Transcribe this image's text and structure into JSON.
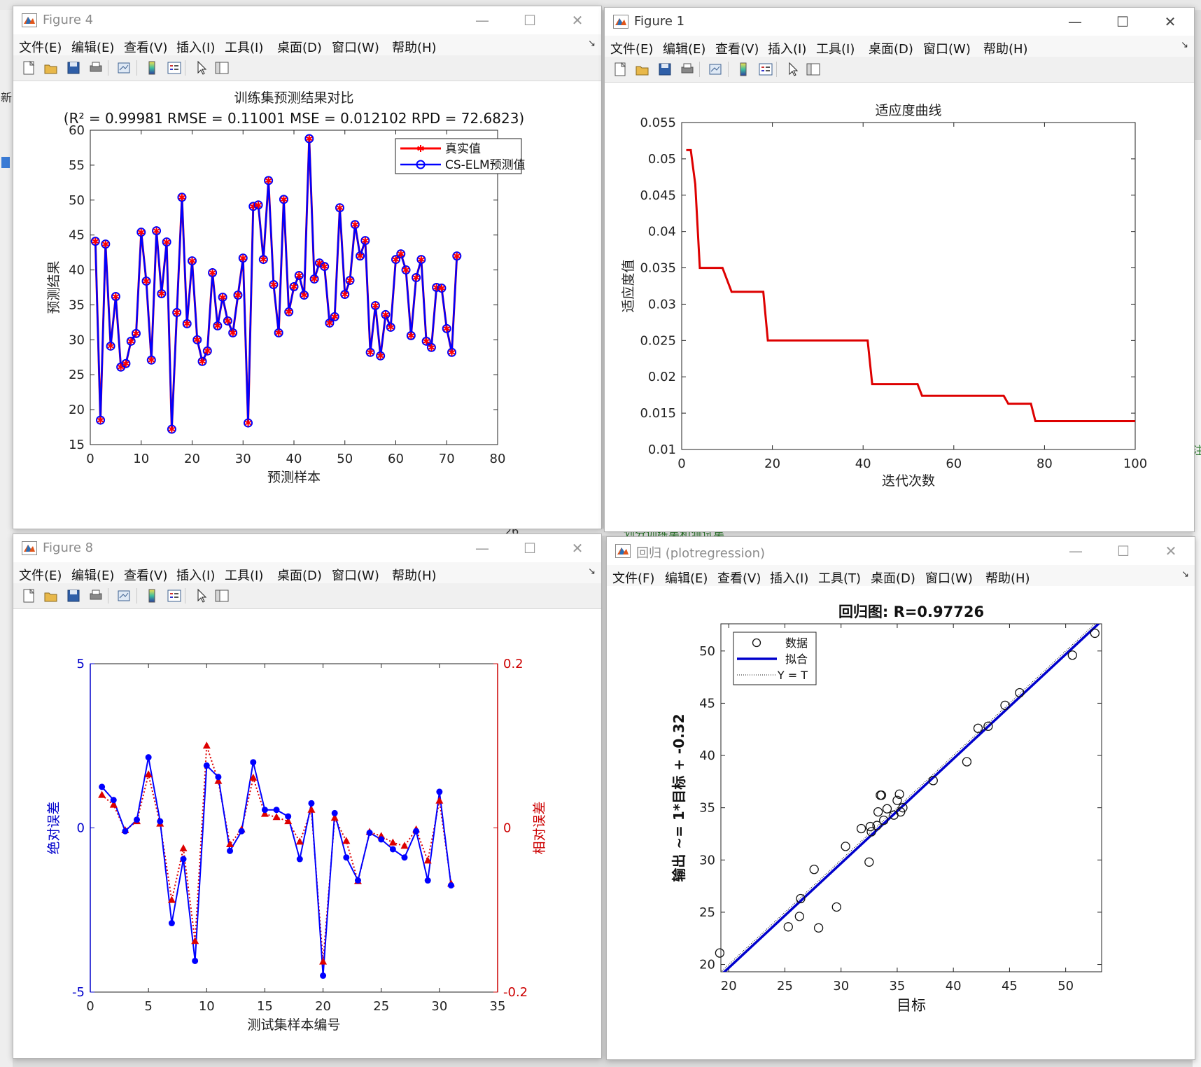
{
  "menus": [
    "文件(F)",
    "编辑(E)",
    "查看(V)",
    "插入(I)",
    "工具(T)",
    "桌面(D)",
    "窗口(W)",
    "帮助(H)"
  ],
  "menus_bracket": [
    "文件(E)",
    "编辑(E)",
    "查看(V)",
    "插入(I)",
    "工具(I)",
    "桌面(D)",
    "窗口(W)",
    "帮助(H)"
  ],
  "background": {
    "snippets": [
      "新",
      "划分训练集和测试集",
      "26",
      "土",
      "注"
    ]
  },
  "windows": {
    "fig4": {
      "title": "Figure 4",
      "chart_data": {
        "type": "line",
        "title": "训练集预测结果对比",
        "subtitle": "(R² = 0.99981 RMSE = 0.11001 MSE = 0.012102 RPD = 72.6823)",
        "xlabel": "预测样本",
        "ylabel": "预测结果",
        "xlim": [
          0,
          80
        ],
        "ylim": [
          15,
          60
        ],
        "xticks": [
          0,
          10,
          20,
          30,
          40,
          50,
          60,
          70,
          80
        ],
        "yticks": [
          15,
          20,
          25,
          30,
          35,
          40,
          45,
          50,
          55,
          60
        ],
        "legend_position": "top-right",
        "series": [
          {
            "name": "真实值",
            "color": "#ff0000",
            "marker": "star"
          },
          {
            "name": "CS-ELM预测值",
            "color": "#0000ff",
            "marker": "circle"
          }
        ],
        "values": [
          44.1,
          18.5,
          43.7,
          29.1,
          36.2,
          26.1,
          26.6,
          29.8,
          30.9,
          45.4,
          38.4,
          27.1,
          45.6,
          36.6,
          44.0,
          17.2,
          33.9,
          50.4,
          32.3,
          41.3,
          30.0,
          26.9,
          28.4,
          39.6,
          32.0,
          36.1,
          32.7,
          31.0,
          36.4,
          41.7,
          18.1,
          49.1,
          49.3,
          41.5,
          52.8,
          37.9,
          31.0,
          50.1,
          34.0,
          37.6,
          39.2,
          36.4,
          58.8,
          38.7,
          41.0,
          40.5,
          32.4,
          33.3,
          48.9,
          36.5,
          38.5,
          46.5,
          42.0,
          44.2,
          28.2,
          34.9,
          27.7,
          33.6,
          31.8,
          41.5,
          42.3,
          40.0,
          30.6,
          38.9,
          41.5,
          29.8,
          28.9,
          37.5,
          37.4,
          31.6,
          28.2,
          42.0
        ]
      }
    },
    "fig1": {
      "title": "Figure 1",
      "chart_data": {
        "type": "line",
        "title": "适应度曲线",
        "xlabel": "迭代次数",
        "ylabel": "适应度值",
        "xlim": [
          0,
          100
        ],
        "ylim": [
          0.01,
          0.055
        ],
        "xticks": [
          0,
          20,
          40,
          60,
          80,
          100
        ],
        "yticks": [
          0.01,
          0.015,
          0.02,
          0.025,
          0.03,
          0.035,
          0.04,
          0.045,
          0.05,
          0.055
        ],
        "color": "#dd0000",
        "x": [
          1,
          2,
          3,
          4,
          9,
          11,
          18,
          19,
          41,
          42,
          52,
          53,
          71,
          72,
          77,
          78,
          100
        ],
        "y": [
          0.0512,
          0.0512,
          0.0465,
          0.035,
          0.035,
          0.0317,
          0.0317,
          0.025,
          0.025,
          0.019,
          0.019,
          0.0174,
          0.0174,
          0.0163,
          0.0163,
          0.0139,
          0.0139
        ]
      }
    },
    "fig8": {
      "title": "Figure 8",
      "chart_data": {
        "type": "line",
        "xlabel": "测试集样本编号",
        "ylabel_left": "绝对误差",
        "ylabel_right": "相对误差",
        "xlim": [
          0,
          35
        ],
        "ylim_left": [
          -5,
          5
        ],
        "ylim_right": [
          -0.2,
          0.2
        ],
        "xticks": [
          0,
          5,
          10,
          15,
          20,
          25,
          30,
          35
        ],
        "yticks_left": [
          -5,
          0,
          5
        ],
        "yticks_right": [
          -0.2,
          0,
          0.2
        ],
        "series": [
          {
            "name": "绝对误差",
            "axis": "left",
            "color": "#0000ff",
            "marker": "circle",
            "style": "solid",
            "values": [
              1.25,
              0.85,
              -0.1,
              0.25,
              2.15,
              0.2,
              -2.9,
              -0.95,
              -4.05,
              1.9,
              1.55,
              -0.7,
              -0.1,
              2.0,
              0.55,
              0.55,
              0.35,
              -0.95,
              0.75,
              -4.5,
              0.45,
              -0.9,
              -1.6,
              -0.15,
              -0.35,
              -0.65,
              -0.9,
              -0.1,
              -1.6,
              1.1,
              -1.75
            ]
          },
          {
            "name": "相对误差",
            "axis": "right",
            "color": "#dd0000",
            "marker": "triangle",
            "style": "dotted",
            "values": [
              0.04,
              0.028,
              -0.003,
              0.008,
              0.065,
              0.005,
              -0.088,
              -0.025,
              -0.138,
              0.1,
              0.057,
              -0.02,
              -0.002,
              0.061,
              0.017,
              0.013,
              0.008,
              -0.017,
              0.022,
              -0.163,
              0.012,
              -0.016,
              -0.065,
              -0.005,
              -0.01,
              -0.018,
              -0.022,
              -0.002,
              -0.04,
              0.033,
              -0.068
            ]
          }
        ]
      }
    },
    "reg": {
      "title": "回归 (plotregression)",
      "chart_data": {
        "type": "scatter",
        "title": "回归图: R=0.97726",
        "xlabel": "目标",
        "ylabel": "输出 ~= 1*目标 + -0.32",
        "xlim": [
          19.3,
          53.2
        ],
        "ylim": [
          19.3,
          52.6
        ],
        "xticks": [
          20,
          25,
          30,
          35,
          40,
          45,
          50
        ],
        "yticks": [
          20,
          25,
          30,
          35,
          40,
          45,
          50
        ],
        "legend_position": "top-left",
        "legend": [
          "数据",
          "拟合",
          "Y = T"
        ],
        "fit": {
          "slope": 1.0,
          "intercept": -0.32,
          "color": "#0000cc"
        },
        "identity_color": "#000000",
        "points": [
          [
            19.2,
            21.1
          ],
          [
            25.3,
            23.6
          ],
          [
            26.3,
            24.6
          ],
          [
            26.4,
            26.3
          ],
          [
            27.6,
            29.1
          ],
          [
            28.0,
            23.5
          ],
          [
            29.6,
            25.5
          ],
          [
            30.4,
            31.3
          ],
          [
            31.8,
            33.0
          ],
          [
            32.5,
            29.8
          ],
          [
            32.6,
            33.2
          ],
          [
            32.7,
            32.7
          ],
          [
            33.2,
            33.3
          ],
          [
            33.3,
            34.6
          ],
          [
            33.5,
            36.2
          ],
          [
            33.6,
            36.2
          ],
          [
            33.8,
            33.8
          ],
          [
            34.1,
            34.9
          ],
          [
            34.7,
            34.3
          ],
          [
            35.0,
            35.7
          ],
          [
            35.2,
            36.3
          ],
          [
            35.3,
            34.6
          ],
          [
            35.5,
            35.0
          ],
          [
            38.2,
            37.6
          ],
          [
            41.2,
            39.4
          ],
          [
            42.2,
            42.6
          ],
          [
            43.1,
            42.8
          ],
          [
            44.6,
            44.8
          ],
          [
            45.9,
            46.0
          ],
          [
            50.6,
            49.6
          ],
          [
            52.6,
            51.7
          ]
        ]
      }
    }
  }
}
